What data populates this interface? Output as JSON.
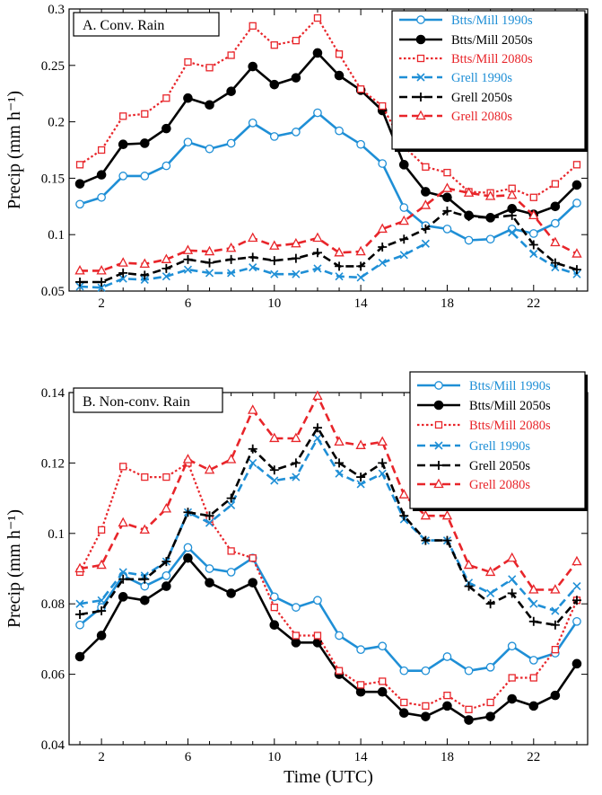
{
  "chart_data": [
    {
      "type": "line",
      "panel_label": "A. Conv. Rain",
      "ylabel": "Precip (mm h⁻¹)",
      "xlabel": "",
      "xlim": [
        0.5,
        24.5
      ],
      "ylim": [
        0.05,
        0.3
      ],
      "x_ticks": [
        2,
        6,
        10,
        14,
        18,
        22
      ],
      "y_ticks": [
        0.05,
        0.1,
        0.15,
        0.2,
        0.25,
        0.3
      ],
      "y_tick_labels": [
        "0.05",
        "0.1",
        "0.15",
        "0.2",
        "0.25",
        "0.3"
      ],
      "legend_position": "top-right",
      "x": [
        1,
        2,
        3,
        4,
        5,
        6,
        7,
        8,
        9,
        10,
        11,
        12,
        13,
        14,
        15,
        16,
        17,
        18,
        19,
        20,
        21,
        22,
        23,
        24
      ],
      "series": [
        {
          "name": "Btts/Mill 1990s",
          "color": "#1f8fd6",
          "marker": "circle-open",
          "dash": "solid",
          "values": [
            0.127,
            0.133,
            0.152,
            0.152,
            0.161,
            0.182,
            0.176,
            0.181,
            0.199,
            0.187,
            0.191,
            0.208,
            0.192,
            0.18,
            0.163,
            0.124,
            0.108,
            0.105,
            0.095,
            0.096,
            0.105,
            0.101,
            0.11,
            0.128
          ]
        },
        {
          "name": "Btts/Mill 2050s",
          "color": "#000000",
          "marker": "circle-filled",
          "dash": "solid",
          "values": [
            0.145,
            0.153,
            0.18,
            0.181,
            0.194,
            0.221,
            0.215,
            0.227,
            0.249,
            0.233,
            0.239,
            0.261,
            0.241,
            0.228,
            0.21,
            0.162,
            0.138,
            0.133,
            0.117,
            0.115,
            0.123,
            0.118,
            0.125,
            0.144
          ]
        },
        {
          "name": "Btts/Mill 2080s",
          "color": "#e8252a",
          "marker": "square-open",
          "dash": "dot",
          "values": [
            0.162,
            0.175,
            0.205,
            0.207,
            0.221,
            0.253,
            0.248,
            0.259,
            0.285,
            0.268,
            0.272,
            0.292,
            0.26,
            0.229,
            0.214,
            0.178,
            0.16,
            0.155,
            0.138,
            0.137,
            0.141,
            0.133,
            0.145,
            0.162
          ]
        },
        {
          "name": "Grell 1990s",
          "color": "#1f8fd6",
          "marker": "x",
          "dash": "dash",
          "values": [
            0.054,
            0.053,
            0.061,
            0.06,
            0.063,
            0.069,
            0.066,
            0.066,
            0.071,
            0.065,
            0.065,
            0.07,
            0.063,
            0.062,
            0.075,
            0.082,
            0.092,
            null,
            null,
            null,
            0.102,
            0.083,
            0.071,
            0.065
          ]
        },
        {
          "name": "Grell 2050s",
          "color": "#000000",
          "marker": "plus",
          "dash": "dash",
          "values": [
            0.058,
            0.058,
            0.066,
            0.064,
            0.07,
            0.078,
            0.075,
            0.078,
            0.08,
            0.077,
            0.079,
            0.084,
            0.072,
            0.072,
            0.089,
            0.096,
            0.105,
            0.121,
            0.116,
            0.115,
            0.117,
            0.091,
            0.075,
            0.069
          ]
        },
        {
          "name": "Grell 2080s",
          "color": "#e8252a",
          "marker": "triangle-open",
          "dash": "dash",
          "values": [
            0.068,
            0.068,
            0.075,
            0.074,
            0.078,
            0.086,
            0.085,
            0.088,
            0.097,
            0.09,
            0.092,
            0.097,
            0.084,
            0.085,
            0.105,
            0.112,
            0.126,
            0.141,
            0.137,
            0.134,
            0.135,
            0.117,
            0.093,
            0.083
          ]
        }
      ]
    },
    {
      "type": "line",
      "panel_label": "B. Non-conv. Rain",
      "ylabel": "Precip (mm h⁻¹)",
      "xlabel": "Time (UTC)",
      "xlim": [
        0.5,
        24.5
      ],
      "ylim": [
        0.04,
        0.14
      ],
      "x_ticks": [
        2,
        6,
        10,
        14,
        18,
        22
      ],
      "y_ticks": [
        0.04,
        0.06,
        0.08,
        0.1,
        0.12,
        0.14
      ],
      "y_tick_labels": [
        "0.04",
        "0.06",
        "0.08",
        "0.1",
        "0.12",
        "0.14"
      ],
      "legend_position": "top-right",
      "x": [
        1,
        2,
        3,
        4,
        5,
        6,
        7,
        8,
        9,
        10,
        11,
        12,
        13,
        14,
        15,
        16,
        17,
        18,
        19,
        20,
        21,
        22,
        23,
        24
      ],
      "series": [
        {
          "name": "Btts/Mill 1990s",
          "color": "#1f8fd6",
          "marker": "circle-open",
          "dash": "solid",
          "values": [
            0.074,
            0.079,
            0.088,
            0.085,
            0.088,
            0.096,
            0.09,
            0.089,
            0.093,
            0.082,
            0.079,
            0.081,
            0.071,
            0.067,
            0.068,
            0.061,
            0.061,
            0.065,
            0.061,
            0.062,
            0.068,
            0.064,
            0.066,
            0.075
          ]
        },
        {
          "name": "Btts/Mill 2050s",
          "color": "#000000",
          "marker": "circle-filled",
          "dash": "solid",
          "values": [
            0.065,
            0.071,
            0.082,
            0.081,
            0.085,
            0.093,
            0.086,
            0.083,
            0.086,
            0.074,
            0.069,
            0.069,
            0.06,
            0.055,
            0.055,
            0.049,
            0.048,
            0.051,
            0.047,
            0.048,
            0.053,
            0.051,
            0.054,
            0.063
          ]
        },
        {
          "name": "Btts/Mill 2080s",
          "color": "#e8252a",
          "marker": "square-open",
          "dash": "dot",
          "values": [
            0.089,
            0.101,
            0.119,
            0.116,
            0.116,
            0.12,
            0.104,
            0.095,
            0.093,
            0.079,
            0.071,
            0.071,
            0.061,
            0.057,
            0.058,
            0.052,
            0.051,
            0.054,
            0.05,
            0.052,
            0.059,
            0.059,
            0.067,
            0.081
          ]
        },
        {
          "name": "Grell 1990s",
          "color": "#1f8fd6",
          "marker": "x",
          "dash": "dash",
          "values": [
            0.08,
            0.081,
            0.089,
            0.088,
            0.092,
            0.106,
            0.103,
            0.108,
            0.12,
            0.115,
            0.116,
            0.127,
            0.117,
            0.114,
            0.117,
            0.104,
            0.098,
            0.098,
            0.086,
            0.083,
            0.087,
            0.08,
            0.078,
            0.085
          ]
        },
        {
          "name": "Grell 2050s",
          "color": "#000000",
          "marker": "plus",
          "dash": "dash",
          "values": [
            0.077,
            0.078,
            0.087,
            0.087,
            0.092,
            0.106,
            0.105,
            0.11,
            0.124,
            0.118,
            0.12,
            0.13,
            0.12,
            0.116,
            0.12,
            0.105,
            0.098,
            0.098,
            0.085,
            0.08,
            0.083,
            0.075,
            0.074,
            0.081
          ]
        },
        {
          "name": "Grell 2080s",
          "color": "#e8252a",
          "marker": "triangle-open",
          "dash": "dash",
          "values": [
            0.09,
            0.091,
            0.103,
            0.101,
            0.107,
            0.121,
            0.118,
            0.121,
            0.135,
            0.127,
            0.127,
            0.139,
            0.126,
            0.125,
            0.126,
            0.111,
            0.105,
            0.105,
            0.091,
            0.089,
            0.093,
            0.084,
            0.084,
            0.092
          ]
        }
      ]
    }
  ]
}
